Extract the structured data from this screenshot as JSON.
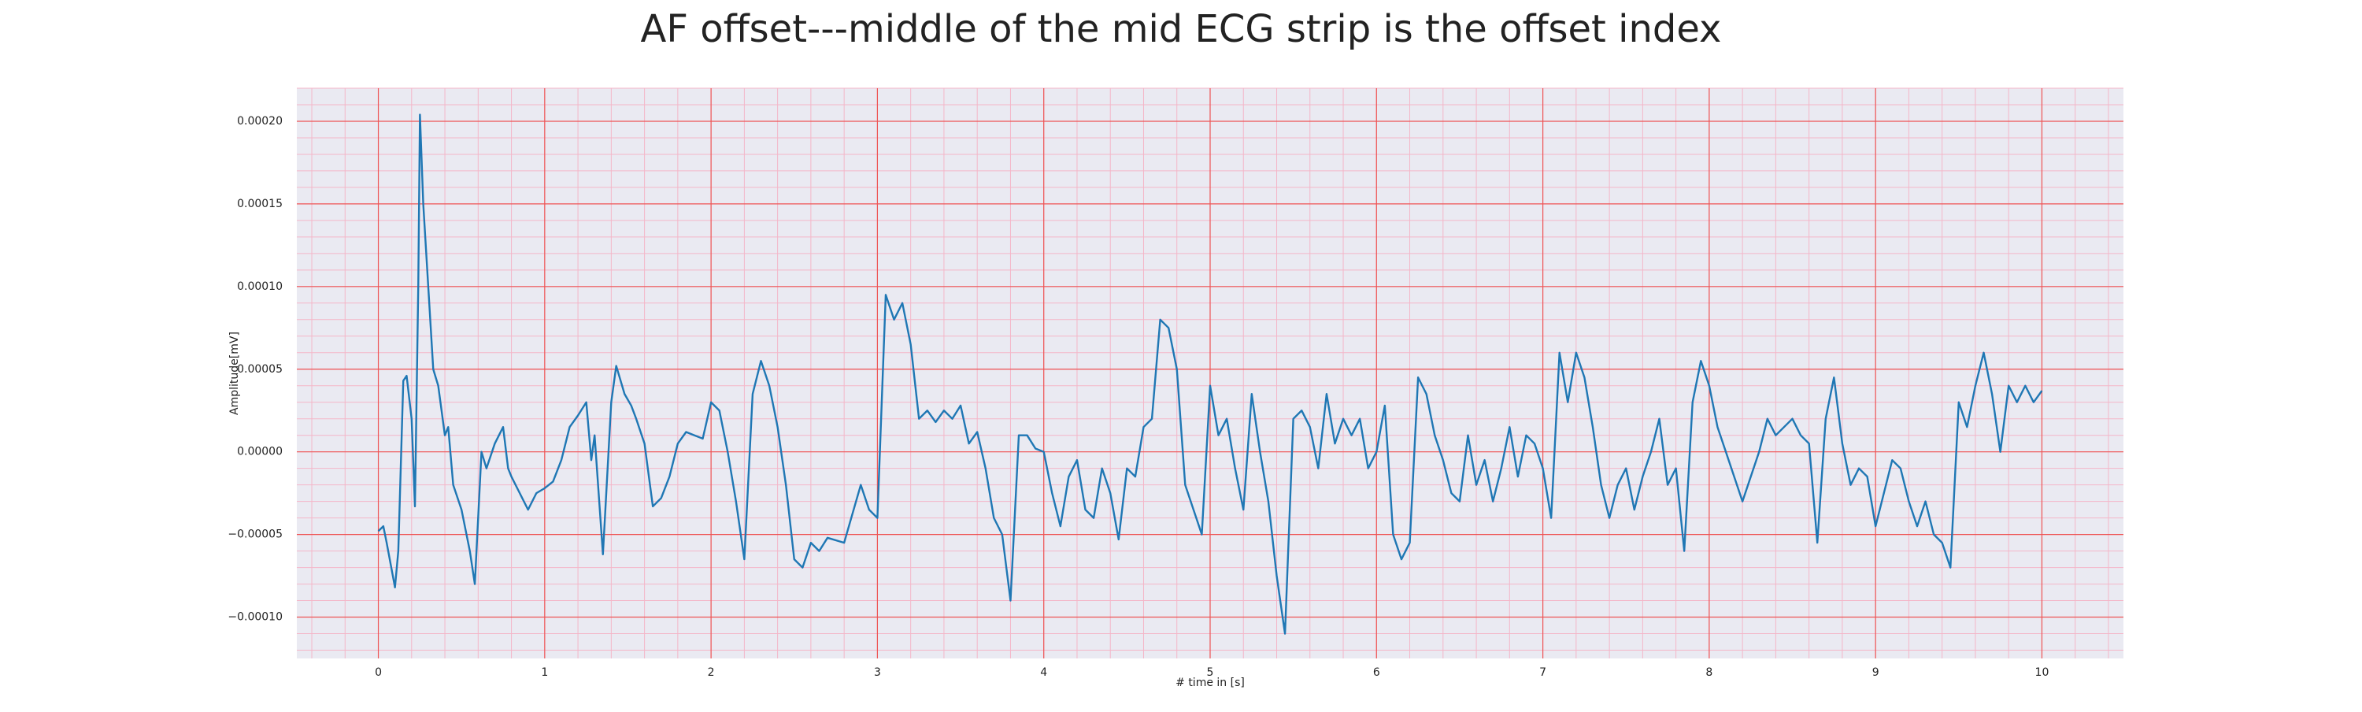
{
  "chart_data": {
    "type": "line",
    "title": "AF offset---middle of the mid ECG strip is the offset index",
    "xlabel": "# time in [s]",
    "ylabel": "Amplitude[mV]",
    "x": [
      0,
      0.03,
      0.05,
      0.1,
      0.12,
      0.15,
      0.17,
      0.2,
      0.22,
      0.24,
      0.25,
      0.27,
      0.3,
      0.33,
      0.36,
      0.4,
      0.42,
      0.45,
      0.5,
      0.55,
      0.58,
      0.62,
      0.65,
      0.7,
      0.75,
      0.78,
      0.8,
      0.85,
      0.9,
      0.95,
      1.0,
      1.05,
      1.1,
      1.15,
      1.2,
      1.25,
      1.28,
      1.3,
      1.35,
      1.4,
      1.43,
      1.48,
      1.52,
      1.55,
      1.6,
      1.65,
      1.7,
      1.75,
      1.8,
      1.85,
      1.9,
      1.95,
      2.0,
      2.05,
      2.1,
      2.15,
      2.2,
      2.25,
      2.3,
      2.35,
      2.4,
      2.45,
      2.5,
      2.55,
      2.6,
      2.65,
      2.7,
      2.8,
      2.9,
      2.95,
      3.0,
      3.05,
      3.1,
      3.15,
      3.2,
      3.25,
      3.3,
      3.35,
      3.4,
      3.45,
      3.5,
      3.55,
      3.6,
      3.65,
      3.7,
      3.75,
      3.8,
      3.85,
      3.9,
      3.95,
      4.0,
      4.05,
      4.1,
      4.15,
      4.2,
      4.25,
      4.3,
      4.35,
      4.4,
      4.45,
      4.5,
      4.55,
      4.6,
      4.65,
      4.7,
      4.75,
      4.8,
      4.85,
      4.9,
      4.95,
      5.0,
      5.05,
      5.1,
      5.15,
      5.2,
      5.25,
      5.3,
      5.35,
      5.4,
      5.45,
      5.5,
      5.55,
      5.6,
      5.65,
      5.7,
      5.75,
      5.8,
      5.85,
      5.9,
      5.95,
      6.0,
      6.05,
      6.1,
      6.15,
      6.2,
      6.25,
      6.3,
      6.35,
      6.4,
      6.45,
      6.5,
      6.55,
      6.6,
      6.65,
      6.7,
      6.75,
      6.8,
      6.85,
      6.9,
      6.95,
      7.0,
      7.05,
      7.1,
      7.15,
      7.2,
      7.25,
      7.3,
      7.35,
      7.4,
      7.45,
      7.5,
      7.55,
      7.6,
      7.65,
      7.7,
      7.75,
      7.8,
      7.85,
      7.9,
      7.95,
      8.0,
      8.05,
      8.1,
      8.15,
      8.2,
      8.25,
      8.3,
      8.35,
      8.4,
      8.45,
      8.5,
      8.55,
      8.6,
      8.65,
      8.7,
      8.75,
      8.8,
      8.85,
      8.9,
      8.95,
      9.0,
      9.05,
      9.1,
      9.15,
      9.2,
      9.25,
      9.3,
      9.35,
      9.4,
      9.45,
      9.5,
      9.55,
      9.6,
      9.65,
      9.7,
      9.75,
      9.8,
      9.85,
      9.9,
      9.95,
      10.0
    ],
    "series": [
      {
        "color": "#1f77b4",
        "values": [
          -4.8e-05,
          -4.5e-05,
          -5.5e-05,
          -8.2e-05,
          -6e-05,
          4.3e-05,
          4.6e-05,
          2e-05,
          -3.3e-05,
          0.0001,
          0.000204,
          0.00015,
          0.0001,
          5e-05,
          4e-05,
          1e-05,
          1.5e-05,
          -2e-05,
          -3.5e-05,
          -6e-05,
          -8e-05,
          0,
          -1e-05,
          5e-06,
          1.5e-05,
          -1e-05,
          -1.5e-05,
          -2.5e-05,
          -3.5e-05,
          -2.5e-05,
          -2.2e-05,
          -1.8e-05,
          -5e-06,
          1.5e-05,
          2.2e-05,
          3e-05,
          -5e-06,
          1e-05,
          -6.2e-05,
          3e-05,
          5.2e-05,
          3.5e-05,
          2.8e-05,
          2e-05,
          5e-06,
          -3.3e-05,
          -2.8e-05,
          -1.5e-05,
          5e-06,
          1.2e-05,
          1e-05,
          8e-06,
          3e-05,
          2.5e-05,
          0,
          -3e-05,
          -6.5e-05,
          3.5e-05,
          5.5e-05,
          4e-05,
          1.5e-05,
          -2e-05,
          -6.5e-05,
          -7e-05,
          -5.5e-05,
          -6e-05,
          -5.2e-05,
          -5.5e-05,
          -2e-05,
          -3.5e-05,
          -4e-05,
          9.5e-05,
          8e-05,
          9e-05,
          6.5e-05,
          2e-05,
          2.5e-05,
          1.8e-05,
          2.5e-05,
          2e-05,
          2.8e-05,
          5e-06,
          1.2e-05,
          -1e-05,
          -4e-05,
          -5e-05,
          -9e-05,
          1e-05,
          1e-05,
          2e-06,
          0,
          -2.5e-05,
          -4.5e-05,
          -1.5e-05,
          -5e-06,
          -3.5e-05,
          -4e-05,
          -1e-05,
          -2.5e-05,
          -5.3e-05,
          -1e-05,
          -1.5e-05,
          1.5e-05,
          2e-05,
          8e-05,
          7.5e-05,
          5e-05,
          -2e-05,
          -3.5e-05,
          -5e-05,
          4e-05,
          1e-05,
          2e-05,
          -1e-05,
          -3.5e-05,
          3.5e-05,
          0,
          -3e-05,
          -7.5e-05,
          -0.00011,
          2e-05,
          2.5e-05,
          1.5e-05,
          -1e-05,
          3.5e-05,
          5e-06,
          2e-05,
          1e-05,
          2e-05,
          -1e-05,
          0,
          2.8e-05,
          -5e-05,
          -6.5e-05,
          -5.5e-05,
          4.5e-05,
          3.5e-05,
          1e-05,
          -5e-06,
          -2.5e-05,
          -3e-05,
          1e-05,
          -2e-05,
          -5e-06,
          -3e-05,
          -1e-05,
          1.5e-05,
          -1.5e-05,
          1e-05,
          5e-06,
          -1e-05,
          -4e-05,
          6e-05,
          3e-05,
          6e-05,
          4.5e-05,
          1.5e-05,
          -2e-05,
          -4e-05,
          -2e-05,
          -1e-05,
          -3.5e-05,
          -1.5e-05,
          0,
          2e-05,
          -2e-05,
          -1e-05,
          -6e-05,
          3e-05,
          5.5e-05,
          4e-05,
          1.5e-05,
          0,
          -1.5e-05,
          -3e-05,
          -1.5e-05,
          0,
          2e-05,
          1e-05,
          1.5e-05,
          2e-05,
          1e-05,
          5e-06,
          -5.5e-05,
          2e-05,
          4.5e-05,
          5e-06,
          -2e-05,
          -1e-05,
          -1.5e-05,
          -4.5e-05,
          -2.5e-05,
          -5e-06,
          -1e-05,
          -3e-05,
          -4.5e-05,
          -3e-05,
          -5e-05,
          -5.5e-05,
          -7e-05,
          3e-05,
          1.5e-05,
          4e-05,
          6e-05,
          3.5e-05,
          0,
          4e-05,
          3e-05,
          4e-05,
          3e-05,
          3.7e-05
        ]
      }
    ],
    "xlim": [
      -0.49,
      10.49
    ],
    "ylim": [
      -0.000125,
      0.00022
    ],
    "xticks": [
      0,
      1,
      2,
      3,
      4,
      5,
      6,
      7,
      8,
      9,
      10
    ],
    "yticks": [
      {
        "value": -0.0001,
        "label": "−0.00010"
      },
      {
        "value": -5e-05,
        "label": "−0.00005"
      },
      {
        "value": 0,
        "label": "0.00000"
      },
      {
        "value": 5e-05,
        "label": "0.00005"
      },
      {
        "value": 0.0001,
        "label": "0.00010"
      },
      {
        "value": 0.00015,
        "label": "0.00015"
      },
      {
        "value": 0.0002,
        "label": "0.00020"
      }
    ],
    "grid": true,
    "minor_grid": true
  }
}
